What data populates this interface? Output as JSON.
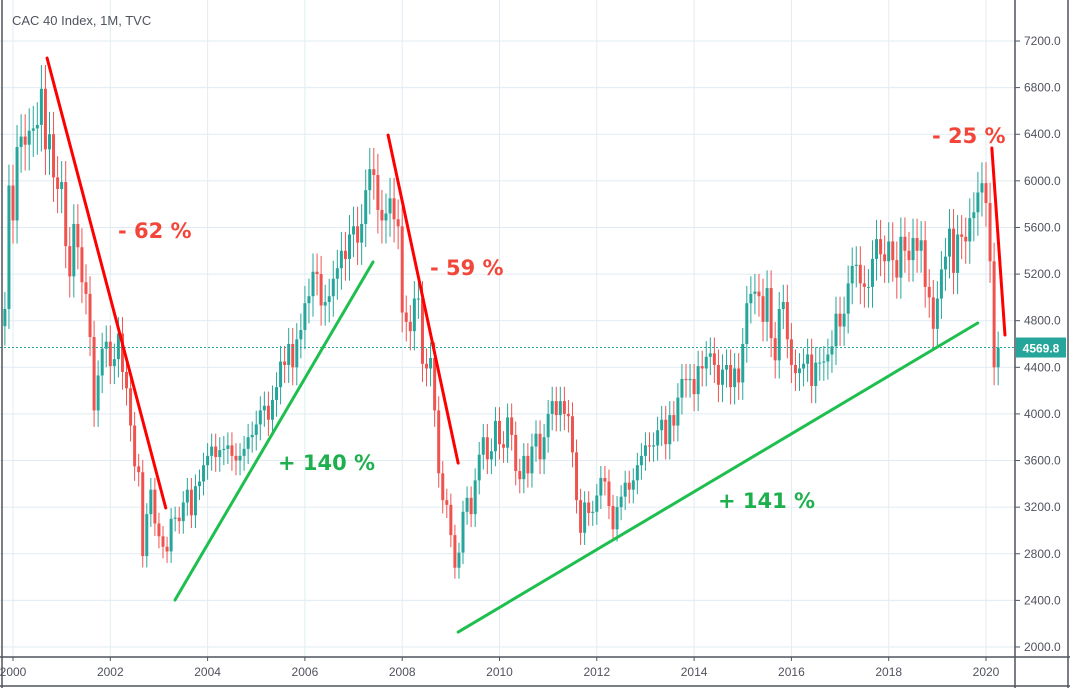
{
  "header": {
    "title": "CAC 40 Index, 1M, TVC"
  },
  "colors": {
    "up": "#26a69a",
    "down": "#ef5350",
    "decline_line": "#ff0000",
    "rise_line": "#1fbf4f",
    "decline_text": "#f2463a",
    "rise_text": "#1eb04e",
    "grid": "#e1ecf2",
    "axis": "#50535e",
    "last_price_bg": "#26a69a"
  },
  "chart_data": {
    "type": "candlestick",
    "title": "CAC 40 Index, 1M, TVC",
    "interval": "monthly",
    "start": "1999-11",
    "closes": [
      4900,
      5960,
      5660,
      6290,
      6380,
      6310,
      6430,
      6450,
      6480,
      6790,
      6270,
      6400,
      6030,
      5930,
      5990,
      5440,
      5180,
      5630,
      5430,
      5130,
      5030,
      4660,
      4030,
      4330,
      4560,
      4620,
      4410,
      4470,
      4690,
      4360,
      4220,
      3900,
      3550,
      3500,
      2780,
      3140,
      3350,
      3060,
      2950,
      2860,
      2820,
      3100,
      3110,
      3080,
      3240,
      3350,
      3130,
      3380,
      3420,
      3560,
      3640,
      3720,
      3630,
      3690,
      3700,
      3730,
      3640,
      3600,
      3640,
      3700,
      3800,
      3820,
      3910,
      4030,
      4070,
      3950,
      4120,
      4230,
      4450,
      4420,
      4600,
      4400,
      4640,
      4720,
      4950,
      5010,
      5220,
      5200,
      4930,
      4960,
      5010,
      5160,
      5250,
      5400,
      5330,
      5540,
      5610,
      5470,
      5630,
      5920,
      6100,
      6050,
      5750,
      5660,
      5720,
      5850,
      5670,
      5610,
      4870,
      4790,
      4710,
      4990,
      4990,
      4430,
      4390,
      4480,
      4030,
      3490,
      3260,
      3220,
      2960,
      2680,
      2810,
      3160,
      3280,
      3140,
      3430,
      3650,
      3800,
      3610,
      3680,
      3940,
      3740,
      3710,
      3970,
      3820,
      3510,
      3440,
      3640,
      3490,
      3720,
      3830,
      3610,
      3800,
      4000,
      4110,
      3990,
      4110,
      4000,
      3980,
      3670,
      3260,
      2980,
      3240,
      3150,
      3160,
      3300,
      3450,
      3420,
      3210,
      3010,
      3200,
      3290,
      3410,
      3350,
      3430,
      3560,
      3640,
      3730,
      3720,
      3730,
      3860,
      3950,
      3740,
      3990,
      3900,
      4140,
      4300,
      4290,
      4300,
      4170,
      4410,
      4390,
      4490,
      4520,
      4420,
      4250,
      4380,
      4420,
      4230,
      4390,
      4270,
      4600,
      4950,
      5030,
      5050,
      5010,
      4790,
      5080,
      4650,
      4460,
      4900,
      4960,
      4640,
      4420,
      4350,
      4390,
      4430,
      4510,
      4240,
      4440,
      4440,
      4450,
      4510,
      4580,
      4860,
      4750,
      4860,
      5120,
      5270,
      5280,
      5120,
      5090,
      5090,
      5330,
      5500,
      5370,
      5310,
      5480,
      5320,
      5170,
      5520,
      5400,
      5320,
      5510,
      5400,
      5490,
      5090,
      5000,
      4730,
      4990,
      5240,
      5350,
      5590,
      5210,
      5540,
      5520,
      5480,
      5680,
      5730,
      5900,
      5980,
      5810,
      5310,
      4400,
      4569.8
    ],
    "x_ticks": [
      "2000",
      "2002",
      "2004",
      "2006",
      "2008",
      "2010",
      "2012",
      "2014",
      "2016",
      "2018",
      "2020"
    ],
    "y_ticks": [
      "2000.0",
      "2400.0",
      "2800.0",
      "3200.0",
      "3600.0",
      "4000.0",
      "4400.0",
      "4800.0",
      "5200.0",
      "5600.0",
      "6000.0",
      "6400.0",
      "6800.0",
      "7200.0"
    ],
    "ylim": [
      1900,
      7550
    ],
    "xlim": [
      1999.8,
      2020.85
    ],
    "grid": true,
    "last_price": 4569.8,
    "last_price_label": "4569.8",
    "trendlines": [
      {
        "kind": "decline",
        "from": [
          2000.7,
          7054
        ],
        "to": [
          2003.14,
          3193
        ],
        "label": "- 62 %"
      },
      {
        "kind": "rise",
        "from": [
          2003.33,
          2403
        ],
        "to": [
          2007.4,
          5304
        ],
        "label": "+ 140 %"
      },
      {
        "kind": "decline",
        "from": [
          2007.71,
          6393
        ],
        "to": [
          2009.15,
          3578
        ],
        "label": "- 59 %"
      },
      {
        "kind": "rise",
        "from": [
          2009.15,
          2128
        ],
        "to": [
          2019.83,
          4780
        ],
        "label": "+ 141 %"
      },
      {
        "kind": "decline",
        "from": [
          2020.12,
          6282
        ],
        "to": [
          2020.39,
          4677
        ],
        "label": "- 25 %"
      }
    ]
  }
}
